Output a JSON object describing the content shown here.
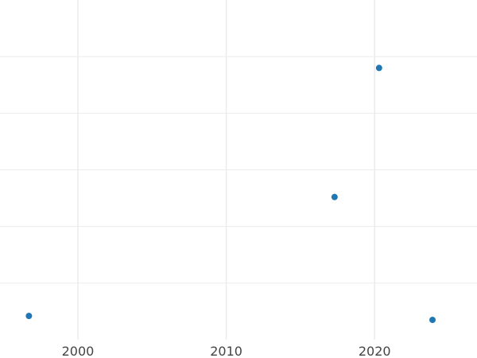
{
  "chart_data": {
    "type": "scatter",
    "title": "",
    "xlabel": "",
    "ylabel": "",
    "xlim": [
      1994.75,
      2026.9
    ],
    "ylim": [
      0,
      6
    ],
    "x_ticks": [
      2000,
      2010,
      2020
    ],
    "x_tick_labels": [
      "2000",
      "2010",
      "2020"
    ],
    "y_gridlines": [
      1,
      2,
      3,
      4,
      5
    ],
    "grid": true,
    "point_color": "#1f77b4",
    "points": [
      {
        "x": 1996.7,
        "y": 0.42
      },
      {
        "x": 2017.3,
        "y": 2.52
      },
      {
        "x": 2020.3,
        "y": 4.8
      },
      {
        "x": 2023.9,
        "y": 0.35
      }
    ]
  }
}
